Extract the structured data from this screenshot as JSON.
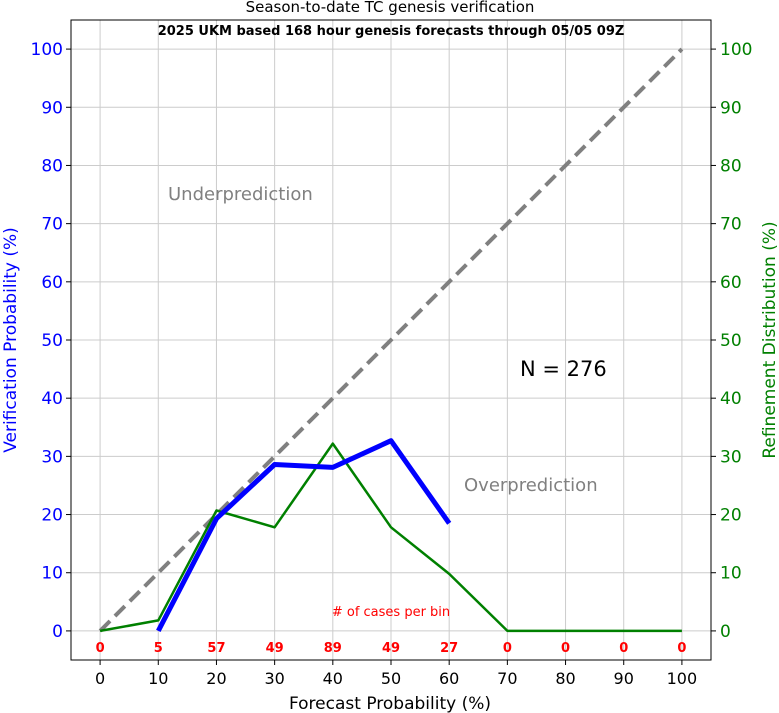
{
  "chart_data": {
    "type": "line",
    "title": "Season-to-date TC genesis verification",
    "subtitle": "2025 UKM based 168 hour genesis forecasts through 05/05 09Z",
    "xlabel": "Forecast Probability (%)",
    "ylabel_left": "Verification Probability (%)",
    "ylabel_right": "Refinement Distribution (%)",
    "xlim": [
      -5,
      105
    ],
    "ylim": [
      -5,
      105
    ],
    "x_ticks": [
      0,
      10,
      20,
      30,
      40,
      50,
      60,
      70,
      80,
      90,
      100
    ],
    "y_ticks": [
      0,
      10,
      20,
      30,
      40,
      50,
      60,
      70,
      80,
      90,
      100
    ],
    "grid": true,
    "colors": {
      "verification": "#0000ff",
      "refinement": "#008000",
      "perfect": "#808080",
      "counts": "#ff0000",
      "annotation": "#808080"
    },
    "series": [
      {
        "key": "perfect",
        "x": [
          0,
          100
        ],
        "y": [
          0,
          100
        ]
      },
      {
        "key": "verification",
        "x": [
          10,
          20,
          30,
          40,
          50,
          60
        ],
        "y": [
          0,
          19.3,
          28.6,
          28.1,
          32.7,
          18.5
        ]
      },
      {
        "key": "refinement",
        "x": [
          0,
          10,
          20,
          30,
          40,
          50,
          60,
          70,
          80,
          90,
          100
        ],
        "y": [
          0,
          1.8,
          20.7,
          17.8,
          32.2,
          17.8,
          9.8,
          0,
          0,
          0,
          0
        ]
      }
    ],
    "bin_counts": {
      "x": [
        0,
        10,
        20,
        30,
        40,
        50,
        60,
        70,
        80,
        90,
        100
      ],
      "counts": [
        "0",
        "5",
        "57",
        "49",
        "89",
        "49",
        "27",
        "0",
        "0",
        "0",
        "0"
      ],
      "label": "# of cases per bin"
    },
    "annotations": {
      "underprediction": "Underprediction",
      "overprediction": "Overprediction",
      "n_total": "N = 276"
    }
  }
}
